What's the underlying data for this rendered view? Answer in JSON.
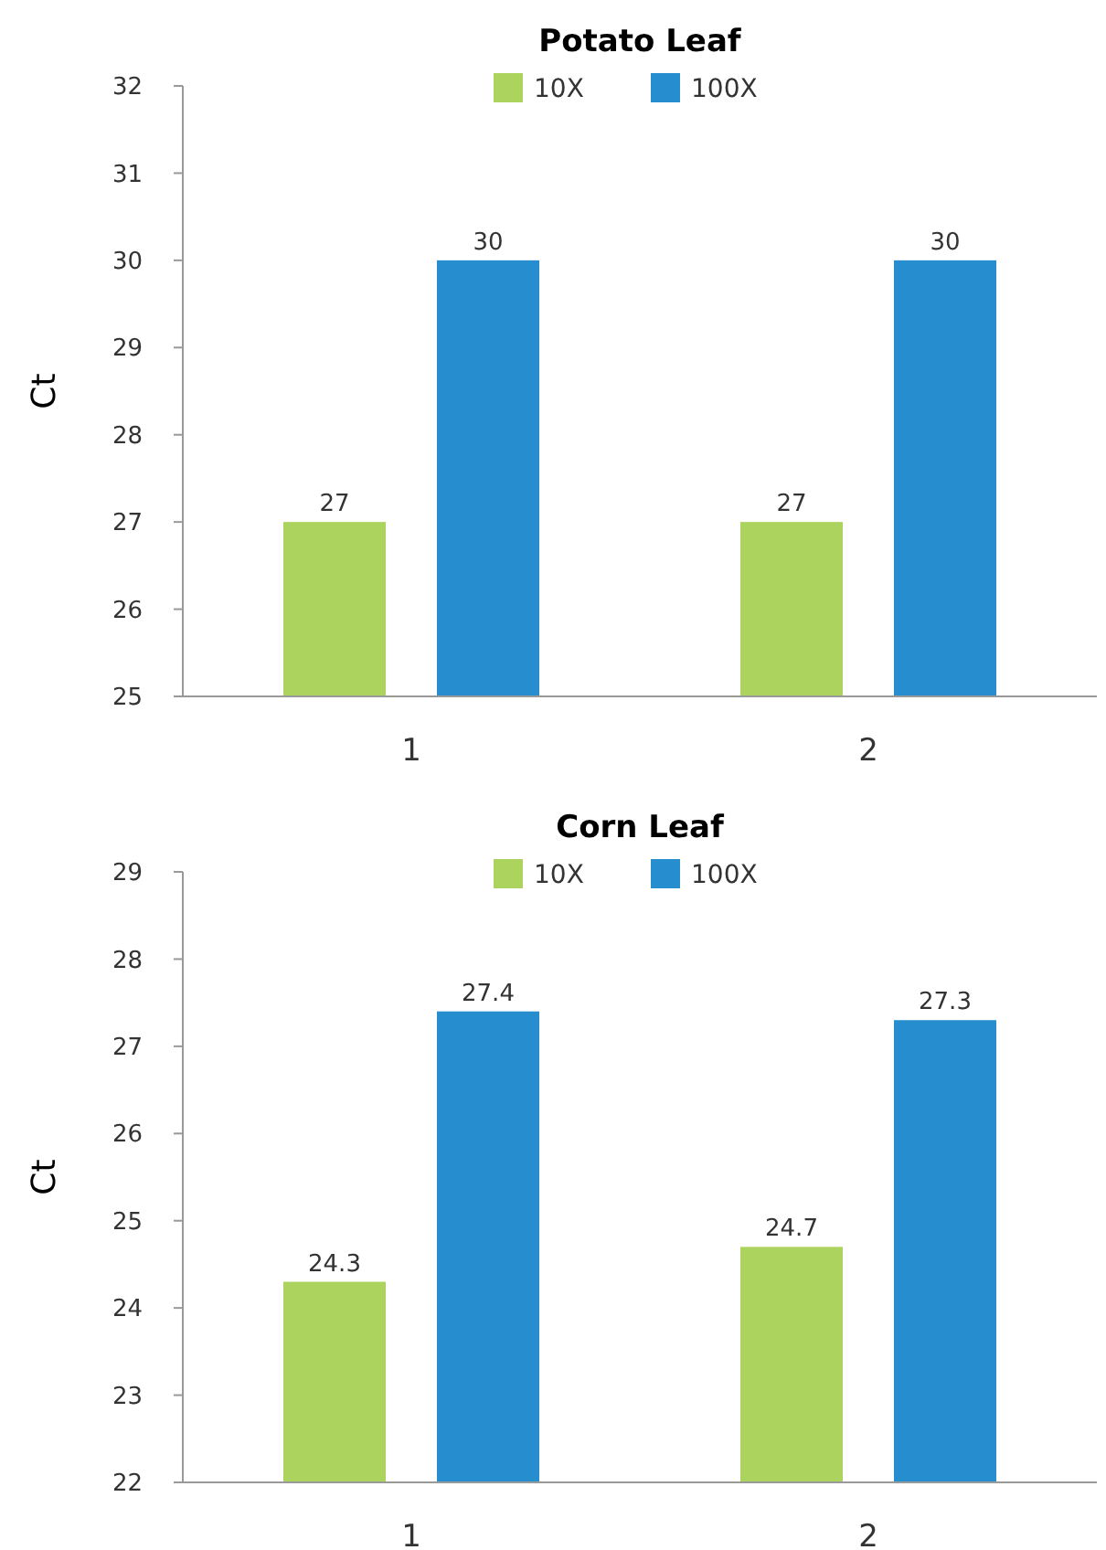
{
  "chart_data": [
    {
      "type": "bar",
      "title": "Potato Leaf",
      "ylabel": "Ct",
      "categories": [
        "1",
        "2"
      ],
      "series": [
        {
          "name": "10X",
          "color": "#add35f",
          "values": [
            27,
            27
          ]
        },
        {
          "name": "100X",
          "color": "#268dcf",
          "values": [
            30,
            30
          ]
        }
      ],
      "ylim": [
        25,
        32
      ],
      "yticks": [
        25,
        26,
        27,
        28,
        29,
        30,
        31,
        32
      ],
      "grid": false,
      "legend": "top",
      "data_labels": true
    },
    {
      "type": "bar",
      "title": "Corn Leaf",
      "ylabel": "Ct",
      "categories": [
        "1",
        "2"
      ],
      "series": [
        {
          "name": "10X",
          "color": "#add35f",
          "values": [
            24.3,
            24.7
          ]
        },
        {
          "name": "100X",
          "color": "#268dcf",
          "values": [
            27.4,
            27.3
          ]
        }
      ],
      "ylim": [
        22,
        29
      ],
      "yticks": [
        22,
        23,
        24,
        25,
        26,
        27,
        28,
        29
      ],
      "grid": false,
      "legend": "top",
      "data_labels": true
    }
  ]
}
